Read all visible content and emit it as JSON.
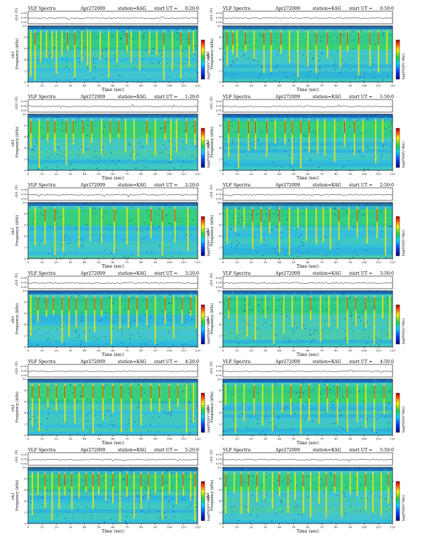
{
  "panel_header": {
    "title": "VLF Spectra",
    "date": "Apr272009",
    "station": "station=KAG",
    "start_prefix": "start  UT  ="
  },
  "labels": {
    "ch1": "ch1",
    "wave_axis": "ch1 (V)",
    "freq_axis": "Frequency  (kHz)",
    "time_axis": "Time  (sec)",
    "colorbar": "log(PSD(V²/Hz))"
  },
  "chart_data": [
    {
      "type": "heatmap",
      "start_ut": "0:20:0",
      "xlim": [
        0,
        120
      ],
      "ylim": [
        0,
        10
      ],
      "wave_ticks": [
        "0.00",
        "0.00",
        "0.00"
      ],
      "burst_times": [
        2,
        5,
        9,
        13,
        17,
        20,
        24,
        28,
        33,
        38,
        42,
        44,
        51,
        57,
        63,
        70,
        73,
        79,
        86,
        91,
        96,
        102,
        108,
        114,
        117
      ]
    },
    {
      "type": "heatmap",
      "start_ut": "0:50:0",
      "xlim": [
        0,
        120
      ],
      "ylim": [
        0,
        10
      ],
      "wave_ticks": [
        "0.00",
        "0.00",
        "0.00"
      ],
      "burst_times": [
        3,
        7,
        10,
        16,
        22,
        29,
        34,
        41,
        47,
        53,
        60,
        66,
        74,
        83,
        88,
        96,
        104,
        110,
        116
      ]
    },
    {
      "type": "heatmap",
      "start_ut": "1:20:0",
      "xlim": [
        0,
        120
      ],
      "ylim": [
        0,
        10
      ],
      "wave_ticks": [
        "0.00",
        "0.00",
        "0.00"
      ],
      "burst_times": [
        2,
        8,
        14,
        19,
        27,
        32,
        39,
        45,
        52,
        58,
        64,
        69,
        75,
        84,
        90,
        97,
        101,
        105,
        112,
        118
      ]
    },
    {
      "type": "heatmap",
      "start_ut": "1:50:0",
      "xlim": [
        0,
        120
      ],
      "ylim": [
        0,
        10
      ],
      "wave_ticks": [
        "0.00",
        "0.00",
        "0.00"
      ],
      "burst_times": [
        4,
        11,
        18,
        23,
        31,
        37,
        44,
        49,
        55,
        61,
        67,
        72,
        79,
        86,
        93,
        99,
        108,
        113
      ]
    },
    {
      "type": "heatmap",
      "start_ut": "2:20:0",
      "xlim": [
        0,
        120
      ],
      "ylim": [
        0,
        10
      ],
      "wave_ticks": [
        "0.00",
        "0.00",
        "0.00"
      ],
      "burst_times": [
        5,
        12,
        19,
        25,
        36,
        44,
        52,
        61,
        70,
        78,
        87,
        95,
        104,
        113
      ]
    },
    {
      "type": "heatmap",
      "start_ut": "2:50:0",
      "xlim": [
        0,
        120
      ],
      "ylim": [
        0,
        10
      ],
      "wave_ticks": [
        "0.00",
        "0.00",
        "0.00"
      ],
      "burst_times": [
        3,
        9,
        15,
        21,
        27,
        33,
        40,
        47,
        53,
        59,
        66,
        71,
        76,
        82,
        89,
        95,
        102,
        109,
        115
      ]
    },
    {
      "type": "heatmap",
      "start_ut": "3:20:0",
      "xlim": [
        0,
        120
      ],
      "ylim": [
        0,
        10
      ],
      "wave_ticks": [
        "0.00",
        "0.00",
        "0.00"
      ],
      "burst_times": [
        2,
        7,
        13,
        18,
        24,
        29,
        34,
        41,
        47,
        52,
        59,
        65,
        71,
        77,
        84,
        90,
        97,
        103,
        109,
        115,
        119
      ]
    },
    {
      "type": "heatmap",
      "start_ut": "3:50:0",
      "xlim": [
        0,
        120
      ],
      "ylim": [
        0,
        10
      ],
      "wave_ticks": [
        "0.00",
        "0.00",
        "0.00"
      ],
      "burst_times": [
        4,
        10,
        17,
        23,
        30,
        36,
        43,
        49,
        56,
        62,
        69,
        75,
        81,
        88,
        94,
        101,
        107,
        113,
        118
      ]
    },
    {
      "type": "heatmap",
      "start_ut": "4:20:0",
      "xlim": [
        0,
        120
      ],
      "ylim": [
        0,
        10
      ],
      "wave_ticks": [
        "0.00",
        "0.00",
        "0.00"
      ],
      "burst_times": [
        3,
        8,
        14,
        20,
        26,
        33,
        39,
        46,
        53,
        60,
        66,
        73,
        80,
        87,
        93,
        100,
        106,
        112,
        117
      ]
    },
    {
      "type": "heatmap",
      "start_ut": "4:50:0",
      "xlim": [
        0,
        120
      ],
      "ylim": [
        0,
        10
      ],
      "wave_ticks": [
        "0.00",
        "0.00",
        "0.00"
      ],
      "burst_times": [
        2,
        9,
        15,
        22,
        28,
        35,
        42,
        48,
        55,
        61,
        68,
        74,
        81,
        88,
        95,
        101,
        107,
        114
      ]
    },
    {
      "type": "heatmap",
      "start_ut": "5:20:0",
      "xlim": [
        0,
        120
      ],
      "ylim": [
        0,
        10
      ],
      "wave_ticks": [
        "0.00",
        "0.00",
        "0.00"
      ],
      "burst_times": [
        3,
        7,
        12,
        17,
        22,
        26,
        31,
        36,
        41,
        46,
        50,
        55,
        60,
        65,
        70,
        75,
        80,
        85,
        90,
        95,
        100,
        105,
        110,
        115,
        118
      ]
    },
    {
      "type": "heatmap",
      "start_ut": "5:50:0",
      "xlim": [
        0,
        120
      ],
      "ylim": [
        0,
        10
      ],
      "wave_ticks": [
        "0.00",
        "0.00",
        "0.00"
      ],
      "burst_times": [
        2,
        8,
        13,
        18,
        24,
        29,
        35,
        40,
        46,
        51,
        57,
        62,
        68,
        73,
        79,
        84,
        90,
        95,
        101,
        106,
        112,
        117
      ]
    }
  ],
  "axis": {
    "x_ticks": [
      "0",
      "10",
      "20",
      "30",
      "40",
      "50",
      "60",
      "70",
      "80",
      "90",
      "100",
      "110",
      "120"
    ],
    "y_ticks": [
      "0",
      "2",
      "4",
      "6",
      "8",
      "10"
    ]
  },
  "colors": {
    "background_field": "#37c3d6",
    "cold": "#0a2a9a",
    "mid": "#2bd64a",
    "hot": "#ffea00",
    "peak": "#d81414"
  }
}
